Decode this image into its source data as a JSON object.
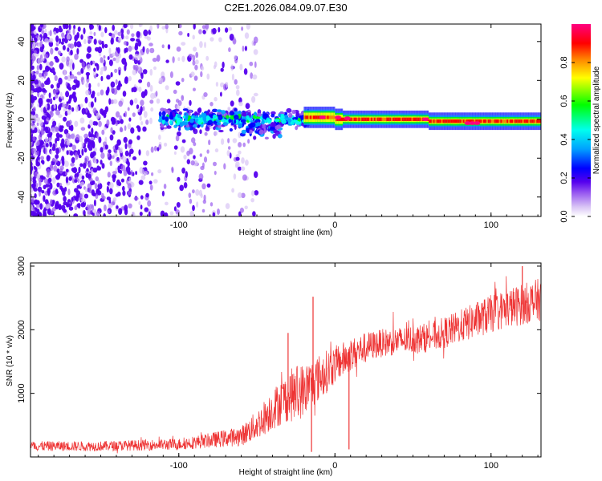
{
  "title": "C2E1.2026.084.09.07.E30",
  "colors": {
    "snr_line": "#ee3333",
    "spectrogram_background": "#ffffff",
    "colormap": [
      "#ffffff",
      "#d9c4f5",
      "#9a5cf0",
      "#5500ee",
      "#0000ff",
      "#00a0ff",
      "#00ffee",
      "#00ff00",
      "#ffff00",
      "#ff8000",
      "#ff0000",
      "#ff0080"
    ]
  },
  "chart_data": [
    {
      "type": "heatmap",
      "title": "C2E1.2026.084.09.07.E30",
      "xlabel": "Height of straight line (km)",
      "ylabel": "Frequency (Hz)",
      "xlim": [
        -195,
        132
      ],
      "ylim": [
        -50,
        49
      ],
      "xticks": [
        -100,
        0,
        100
      ],
      "xtick_labels": [
        "-100",
        "0",
        "100"
      ],
      "yticks": [
        -40,
        -20,
        0,
        20,
        40
      ],
      "ytick_labels": [
        "-40",
        "-20",
        "0",
        "20",
        "40"
      ],
      "colorbar": {
        "label": "Normalized spectral amplitude",
        "range": [
          0.0,
          1.0
        ],
        "ticks": [
          0.0,
          0.2,
          0.4,
          0.6,
          0.8
        ],
        "tick_labels": [
          "0.0",
          "0.2",
          "0.4",
          "0.6",
          "0.8"
        ]
      },
      "regions": [
        {
          "description": "broadband noise speckle",
          "x": [
            -195,
            -120
          ],
          "amplitude": [
            0.05,
            0.25
          ]
        },
        {
          "description": "fading noise speckle",
          "x": [
            -120,
            -50
          ],
          "amplitude": [
            0.02,
            0.15
          ]
        },
        {
          "description": "signal cluster near 0 Hz",
          "x": [
            -110,
            -20
          ],
          "freq": [
            -12,
            7
          ],
          "amplitude": [
            0.2,
            0.6
          ]
        },
        {
          "description": "narrow signal line",
          "x": [
            -20,
            132
          ],
          "freq": [
            -3,
            2
          ],
          "amplitude": [
            0.7,
            1.0
          ]
        }
      ]
    },
    {
      "type": "line",
      "title": "",
      "xlabel": "Height of straight line (km)",
      "ylabel": "SNR (10 * v/v)",
      "xlim": [
        -195,
        132
      ],
      "ylim": [
        0,
        3050
      ],
      "xticks": [
        -100,
        0,
        100
      ],
      "xtick_labels": [
        "-100",
        "0",
        "100"
      ],
      "yticks": [
        1000,
        2000,
        3000
      ],
      "ytick_labels": [
        "1000",
        "2000",
        "3000"
      ],
      "series": [
        {
          "name": "SNR",
          "envelope_x": [
            -195,
            -150,
            -100,
            -80,
            -60,
            -50,
            -40,
            -30,
            -25,
            -20,
            -15,
            -10,
            -5,
            0,
            10,
            20,
            30,
            40,
            50,
            60,
            70,
            80,
            90,
            100,
            110,
            120,
            132
          ],
          "envelope_y": [
            170,
            170,
            200,
            260,
            330,
            500,
            750,
            950,
            1000,
            1050,
            1150,
            1250,
            1350,
            1450,
            1600,
            1730,
            1790,
            1820,
            1850,
            1880,
            1950,
            2050,
            2150,
            2250,
            2330,
            2400,
            2480
          ],
          "noise_amplitude": [
            60,
            60,
            70,
            90,
            120,
            180,
            250,
            300,
            350,
            330,
            300,
            280,
            260,
            230,
            200,
            180,
            170,
            170,
            170,
            180,
            190,
            200,
            220,
            230,
            240,
            250,
            260
          ],
          "spikes": [
            {
              "x": -14,
              "y": 2520
            },
            {
              "x": -30,
              "y": 1950
            },
            {
              "x": -15,
              "y": 80
            },
            {
              "x": 9,
              "y": 120
            },
            {
              "x": 120,
              "y": 3000
            }
          ]
        }
      ]
    }
  ]
}
